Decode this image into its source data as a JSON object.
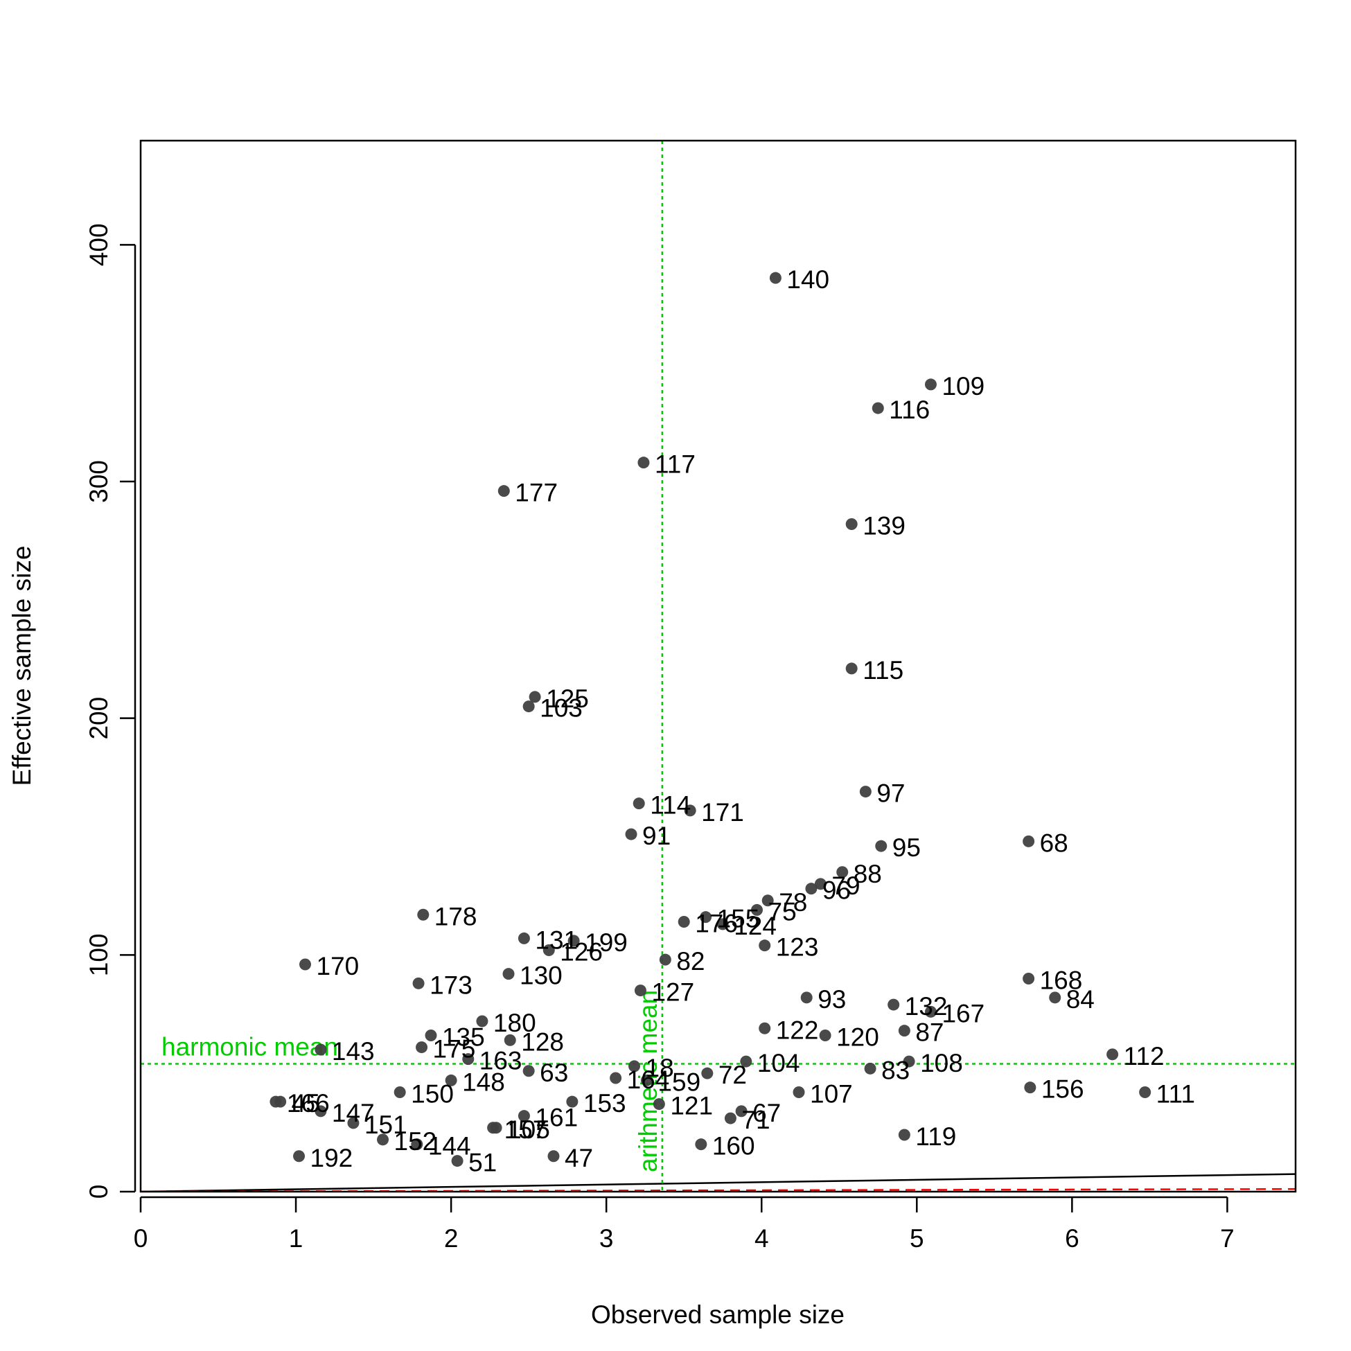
{
  "chart_data": {
    "type": "scatter",
    "title": "",
    "xlabel": "Observed sample size",
    "ylabel": "Effective sample size",
    "xlim": [
      0,
      7.44
    ],
    "ylim": [
      0,
      444
    ],
    "x_ticks": [
      0,
      1,
      2,
      3,
      4,
      5,
      6,
      7
    ],
    "y_ticks": [
      0,
      100,
      200,
      300,
      400
    ],
    "grid": false,
    "point_color": "#404040",
    "reference_lines": [
      {
        "orientation": "vertical",
        "value": 3.36,
        "label": "arithmetic mean",
        "color": "#00cc00",
        "style": "dotted"
      },
      {
        "orientation": "horizontal",
        "value": 54,
        "label": "harmonic mean",
        "color": "#00cc00",
        "style": "dotted"
      }
    ],
    "trend_lines": [
      {
        "name": "",
        "color": "#000000",
        "style": "solid",
        "slope": 1.0
      },
      {
        "name": "",
        "color": "#ff0000",
        "style": "dashed",
        "slope": 0.15
      }
    ],
    "points": [
      {
        "label": "140",
        "x": 4.09,
        "y": 386
      },
      {
        "label": "109",
        "x": 5.09,
        "y": 341
      },
      {
        "label": "116",
        "x": 4.75,
        "y": 331
      },
      {
        "label": "117",
        "x": 3.24,
        "y": 308
      },
      {
        "label": "177",
        "x": 2.34,
        "y": 296
      },
      {
        "label": "139",
        "x": 4.58,
        "y": 282
      },
      {
        "label": "115",
        "x": 4.58,
        "y": 221
      },
      {
        "label": "125",
        "x": 2.54,
        "y": 209
      },
      {
        "label": "103",
        "x": 2.5,
        "y": 205
      },
      {
        "label": "97",
        "x": 4.67,
        "y": 169
      },
      {
        "label": "114",
        "x": 3.21,
        "y": 164
      },
      {
        "label": "171",
        "x": 3.54,
        "y": 161
      },
      {
        "label": "91",
        "x": 3.16,
        "y": 151
      },
      {
        "label": "68",
        "x": 5.72,
        "y": 148
      },
      {
        "label": "95",
        "x": 4.77,
        "y": 146
      },
      {
        "label": "88",
        "x": 4.52,
        "y": 135
      },
      {
        "label": "79",
        "x": 4.38,
        "y": 130
      },
      {
        "label": "96",
        "x": 4.32,
        "y": 128
      },
      {
        "label": "78",
        "x": 4.04,
        "y": 123
      },
      {
        "label": "75",
        "x": 3.97,
        "y": 119
      },
      {
        "label": "178",
        "x": 1.82,
        "y": 117
      },
      {
        "label": "155",
        "x": 3.64,
        "y": 116
      },
      {
        "label": "176",
        "x": 3.5,
        "y": 114
      },
      {
        "label": "124",
        "x": 3.75,
        "y": 113
      },
      {
        "label": "131",
        "x": 2.47,
        "y": 107
      },
      {
        "label": "199",
        "x": 2.79,
        "y": 106
      },
      {
        "label": "123",
        "x": 4.02,
        "y": 104
      },
      {
        "label": "126",
        "x": 2.63,
        "y": 102
      },
      {
        "label": "82",
        "x": 3.38,
        "y": 98
      },
      {
        "label": "170",
        "x": 1.06,
        "y": 96
      },
      {
        "label": "130",
        "x": 2.37,
        "y": 92
      },
      {
        "label": "168",
        "x": 5.72,
        "y": 90
      },
      {
        "label": "173",
        "x": 1.79,
        "y": 88
      },
      {
        "label": "127",
        "x": 3.22,
        "y": 85
      },
      {
        "label": "84",
        "x": 5.89,
        "y": 82
      },
      {
        "label": "93",
        "x": 4.29,
        "y": 82
      },
      {
        "label": "132",
        "x": 4.85,
        "y": 79
      },
      {
        "label": "167",
        "x": 5.09,
        "y": 76
      },
      {
        "label": "180",
        "x": 2.2,
        "y": 72
      },
      {
        "label": "122",
        "x": 4.02,
        "y": 69
      },
      {
        "label": "87",
        "x": 4.92,
        "y": 68
      },
      {
        "label": "120",
        "x": 4.41,
        "y": 66
      },
      {
        "label": "135",
        "x": 1.87,
        "y": 66
      },
      {
        "label": "128",
        "x": 2.38,
        "y": 64
      },
      {
        "label": "175",
        "x": 1.81,
        "y": 61
      },
      {
        "label": "143",
        "x": 1.16,
        "y": 60
      },
      {
        "label": "112",
        "x": 6.26,
        "y": 58
      },
      {
        "label": "163",
        "x": 2.11,
        "y": 56
      },
      {
        "label": "104",
        "x": 3.9,
        "y": 55
      },
      {
        "label": "108",
        "x": 4.95,
        "y": 55
      },
      {
        "label": "18",
        "x": 3.18,
        "y": 53
      },
      {
        "label": "83",
        "x": 4.7,
        "y": 52
      },
      {
        "label": "63",
        "x": 2.5,
        "y": 51
      },
      {
        "label": "72",
        "x": 3.65,
        "y": 50
      },
      {
        "label": "164",
        "x": 3.06,
        "y": 48
      },
      {
        "label": "159",
        "x": 3.26,
        "y": 47
      },
      {
        "label": "148",
        "x": 2.0,
        "y": 47
      },
      {
        "label": "156",
        "x": 5.73,
        "y": 44
      },
      {
        "label": "150",
        "x": 1.67,
        "y": 42
      },
      {
        "label": "107",
        "x": 4.24,
        "y": 42
      },
      {
        "label": "111",
        "x": 6.47,
        "y": 42
      },
      {
        "label": "166",
        "x": 0.87,
        "y": 38
      },
      {
        "label": "45",
        "x": 0.9,
        "y": 38
      },
      {
        "label": "153",
        "x": 2.78,
        "y": 38
      },
      {
        "label": "121",
        "x": 3.34,
        "y": 37
      },
      {
        "label": "147",
        "x": 1.16,
        "y": 34
      },
      {
        "label": "67",
        "x": 3.87,
        "y": 34
      },
      {
        "label": "161",
        "x": 2.47,
        "y": 32
      },
      {
        "label": "71",
        "x": 3.8,
        "y": 31
      },
      {
        "label": "151",
        "x": 1.37,
        "y": 29
      },
      {
        "label": "157",
        "x": 2.27,
        "y": 27
      },
      {
        "label": "105",
        "x": 2.29,
        "y": 27
      },
      {
        "label": "119",
        "x": 4.92,
        "y": 24
      },
      {
        "label": "152",
        "x": 1.56,
        "y": 22
      },
      {
        "label": "144",
        "x": 1.78,
        "y": 20
      },
      {
        "label": "160",
        "x": 3.61,
        "y": 20
      },
      {
        "label": "192",
        "x": 1.02,
        "y": 15
      },
      {
        "label": "47",
        "x": 2.66,
        "y": 15
      },
      {
        "label": "51",
        "x": 2.04,
        "y": 13
      }
    ]
  }
}
